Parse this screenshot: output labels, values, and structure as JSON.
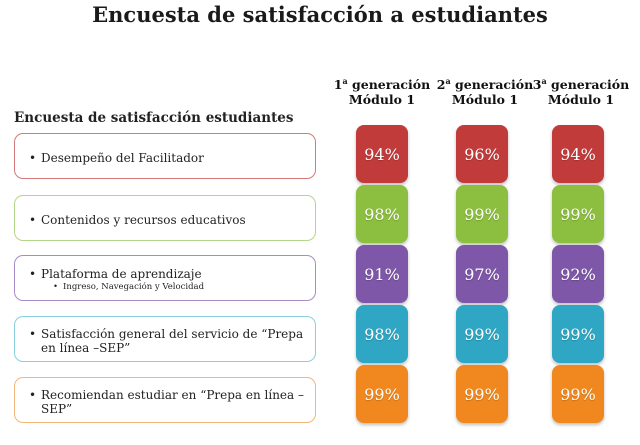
{
  "title": "Encuesta de satisfacción a estudiantes",
  "subtitle": "Encuesta de satisfacción estudiantes",
  "columns": [
    {
      "num": "1",
      "sup": "a",
      "gen": "generación",
      "module": "Módulo 1"
    },
    {
      "num": "2",
      "sup": "a",
      "gen": "generación",
      "module": "Módulo 1"
    },
    {
      "num": "3",
      "sup": "a",
      "gen": "generación",
      "module": "Módulo 1"
    }
  ],
  "rows": [
    {
      "label": "Desempeño del Facilitador",
      "sub": "",
      "color": "#c23b3b",
      "border": "#d47a7a"
    },
    {
      "label": "Contenidos y recursos educativos",
      "sub": "",
      "color": "#8cbf3f",
      "border": "#b5d68a"
    },
    {
      "label": "Plataforma de aprendizaje",
      "sub": "Ingreso, Navegación y Velocidad",
      "color": "#7e57a8",
      "border": "#a88cc8"
    },
    {
      "label": "Satisfacción general del servicio de “Prepa en línea –SEP”",
      "sub": "",
      "color": "#2fa6c4",
      "border": "#8acfe0"
    },
    {
      "label": "Recomiendan estudiar en “Prepa en línea – SEP”",
      "sub": "",
      "color": "#f0881f",
      "border": "#f2b77a"
    }
  ],
  "values": [
    [
      "94%",
      "96%",
      "94%"
    ],
    [
      "98%",
      "99%",
      "99%"
    ],
    [
      "91%",
      "97%",
      "92%"
    ],
    [
      "98%",
      "99%",
      "99%"
    ],
    [
      "99%",
      "99%",
      "99%"
    ]
  ]
}
